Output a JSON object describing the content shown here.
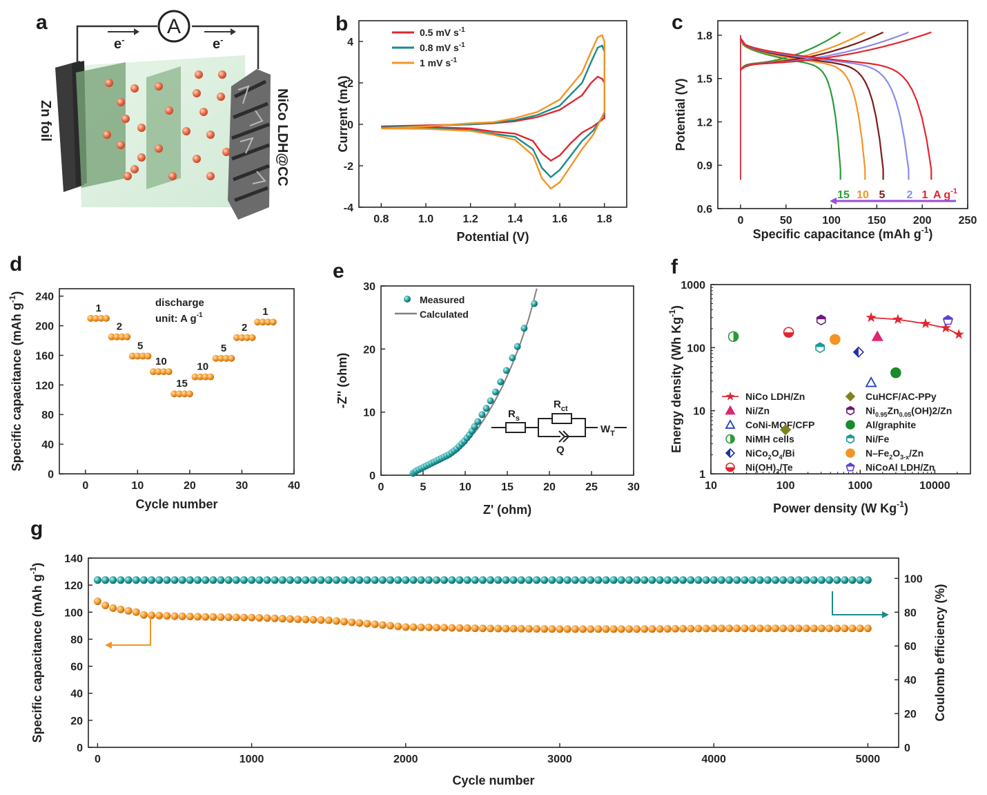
{
  "panels": {
    "a": {
      "label": "a",
      "ammeter": "A",
      "electron_left": "e",
      "electron_right": "e",
      "electron_sup": "-",
      "left_electrode": "Zn foil",
      "right_electrode": "NiCo LDH@CC"
    },
    "b": {
      "label": "b"
    },
    "c": {
      "label": "c"
    },
    "d": {
      "label": "d",
      "note_line1": "discharge",
      "note_line2": "unit: A g",
      "note_sup": "-1"
    },
    "e": {
      "label": "e",
      "circuit": {
        "rs": "R",
        "rs_sub": "s",
        "rct": "R",
        "rct_sub": "ct",
        "q": "Q",
        "wt": "W",
        "wt_sub": "T"
      }
    },
    "f": {
      "label": "f"
    },
    "g": {
      "label": "g"
    }
  },
  "chart_data": [
    {
      "id": "b",
      "type": "line",
      "xlabel": "Potential (V)",
      "ylabel": "Current (mA)",
      "xlim": [
        0.7,
        1.9
      ],
      "ylim": [
        -4,
        5
      ],
      "xticks": [
        "0.8",
        "1.0",
        "1.2",
        "1.4",
        "1.6",
        "1.8"
      ],
      "yticks": [
        "-4",
        "-2",
        "0",
        "2",
        "4"
      ],
      "series": [
        {
          "name": "0.5 mV s",
          "sup": "-1",
          "color": "#e0262e",
          "anodic_x": [
            0.8,
            1.0,
            1.2,
            1.3,
            1.4,
            1.5,
            1.6,
            1.7,
            1.74,
            1.77,
            1.79,
            1.8
          ],
          "anodic_y": [
            -0.1,
            -0.05,
            0.0,
            0.05,
            0.15,
            0.35,
            0.7,
            1.4,
            2.0,
            2.3,
            2.2,
            2.0
          ],
          "cathodic_x": [
            1.8,
            1.75,
            1.7,
            1.65,
            1.6,
            1.56,
            1.52,
            1.48,
            1.4,
            1.3,
            1.2,
            1.0,
            0.8
          ],
          "cathodic_y": [
            0.3,
            -0.1,
            -0.4,
            -0.9,
            -1.5,
            -1.75,
            -1.4,
            -0.8,
            -0.45,
            -0.35,
            -0.2,
            -0.12,
            -0.1
          ]
        },
        {
          "name": "0.8 mV s",
          "sup": "-1",
          "color": "#1a8a8a",
          "anodic_x": [
            0.8,
            1.0,
            1.2,
            1.3,
            1.4,
            1.5,
            1.6,
            1.7,
            1.74,
            1.77,
            1.79,
            1.8
          ],
          "anodic_y": [
            -0.15,
            -0.08,
            0.0,
            0.07,
            0.2,
            0.45,
            0.9,
            2.0,
            3.0,
            3.7,
            3.8,
            3.5
          ],
          "cathodic_x": [
            1.8,
            1.75,
            1.7,
            1.65,
            1.6,
            1.56,
            1.52,
            1.48,
            1.4,
            1.3,
            1.2,
            1.0,
            0.8
          ],
          "cathodic_y": [
            0.5,
            -0.3,
            -0.8,
            -1.5,
            -2.2,
            -2.55,
            -2.1,
            -1.2,
            -0.6,
            -0.45,
            -0.28,
            -0.18,
            -0.15
          ]
        },
        {
          "name": "1 mV s",
          "sup": "-1",
          "color": "#f39424",
          "anodic_x": [
            0.8,
            1.0,
            1.2,
            1.3,
            1.4,
            1.5,
            1.6,
            1.7,
            1.74,
            1.77,
            1.79,
            1.8
          ],
          "anodic_y": [
            -0.2,
            -0.1,
            0.05,
            0.1,
            0.3,
            0.6,
            1.2,
            2.5,
            3.5,
            4.2,
            4.3,
            4.0
          ],
          "cathodic_x": [
            1.8,
            1.75,
            1.7,
            1.65,
            1.6,
            1.56,
            1.52,
            1.48,
            1.4,
            1.3,
            1.2,
            1.0,
            0.8
          ],
          "cathodic_y": [
            0.6,
            -0.5,
            -1.2,
            -2.0,
            -2.8,
            -3.1,
            -2.6,
            -1.5,
            -0.75,
            -0.5,
            -0.32,
            -0.22,
            -0.2
          ]
        }
      ]
    },
    {
      "id": "c",
      "type": "line",
      "xlabel": "Specific capacitance (mAh g",
      "xlabel_sup": "-1",
      "xlabel_end": ")",
      "ylabel": "Potential (V)",
      "xlim": [
        -25,
        250
      ],
      "ylim": [
        0.6,
        1.9
      ],
      "xticks": [
        "0",
        "50",
        "100",
        "150",
        "200",
        "250"
      ],
      "yticks": [
        "0.6",
        "0.9",
        "1.2",
        "1.5",
        "1.8"
      ],
      "rate_unit": "A g",
      "rate_unit_sup": "-1",
      "series": [
        {
          "name": "15",
          "color": "#2a9a3a",
          "capacity": 110
        },
        {
          "name": "10",
          "color": "#f39424",
          "capacity": 137
        },
        {
          "name": "5",
          "color": "#7a1a1a",
          "capacity": 157
        },
        {
          "name": "2",
          "color": "#8a8af0",
          "capacity": 185
        },
        {
          "name": "1",
          "color": "#e0262e",
          "capacity": 210
        }
      ]
    },
    {
      "id": "d",
      "type": "scatter",
      "xlabel": "Cycle number",
      "ylabel": "Specific capacitance (mAh g",
      "ylabel_sup": "-1",
      "ylabel_end": ")",
      "xlim": [
        -5,
        40
      ],
      "ylim": [
        0,
        250
      ],
      "xticks": [
        "0",
        "10",
        "20",
        "30",
        "40"
      ],
      "yticks": [
        "0",
        "40",
        "80",
        "120",
        "160",
        "200",
        "240"
      ],
      "color": "#f39424",
      "steps": [
        {
          "rate": "1",
          "start": 1,
          "value": 210
        },
        {
          "rate": "2",
          "start": 5,
          "value": 185
        },
        {
          "rate": "5",
          "start": 9,
          "value": 159
        },
        {
          "rate": "10",
          "start": 13,
          "value": 138
        },
        {
          "rate": "15",
          "start": 17,
          "value": 108
        },
        {
          "rate": "10",
          "start": 21,
          "value": 131
        },
        {
          "rate": "5",
          "start": 25,
          "value": 156
        },
        {
          "rate": "2",
          "start": 29,
          "value": 184
        },
        {
          "rate": "1",
          "start": 33,
          "value": 205
        }
      ]
    },
    {
      "id": "e",
      "type": "scatter",
      "xlabel": "Z' (ohm)",
      "ylabel": "-Z'' (ohm)",
      "xlim": [
        0,
        30
      ],
      "ylim": [
        0,
        30
      ],
      "xticks": [
        "0",
        "5",
        "10",
        "15",
        "20",
        "25",
        "30"
      ],
      "yticks": [
        "0",
        "10",
        "20",
        "30"
      ],
      "legend": {
        "measured": "Measured",
        "calculated": "Calculated"
      },
      "measured_color": "#1a8a8a",
      "calculated_color": "#808080",
      "measured_x": [
        3.8,
        4.0,
        4.2,
        4.5,
        4.8,
        5.1,
        5.4,
        5.7,
        6.0,
        6.3,
        6.6,
        6.9,
        7.2,
        7.5,
        7.8,
        8.1,
        8.4,
        8.7,
        9.0,
        9.3,
        9.6,
        9.9,
        10.2,
        10.5,
        10.8,
        11.1,
        11.5,
        12.0,
        12.5,
        13.0,
        13.6,
        14.2,
        14.9,
        15.6,
        16.2,
        17.0,
        18.2
      ],
      "measured_y": [
        0.3,
        0.5,
        0.7,
        0.9,
        1.1,
        1.3,
        1.5,
        1.7,
        1.9,
        2.1,
        2.3,
        2.5,
        2.7,
        2.9,
        3.1,
        3.3,
        3.6,
        3.9,
        4.2,
        4.6,
        5.0,
        5.4,
        5.9,
        6.4,
        7.0,
        7.7,
        8.5,
        9.6,
        10.6,
        11.8,
        13.2,
        14.8,
        16.6,
        18.6,
        20.4,
        23.3,
        27.2
      ],
      "calc_x": [
        3.6,
        4.5,
        5.5,
        6.5,
        7.5,
        8.5,
        9.5,
        10.5,
        11.5,
        12.5,
        13.5,
        14.5,
        15.5,
        16.5,
        17.5,
        18.0,
        18.5
      ],
      "calc_y": [
        0.0,
        0.9,
        1.6,
        2.2,
        2.8,
        3.5,
        4.5,
        5.8,
        7.4,
        9.4,
        11.7,
        14.3,
        17.3,
        20.7,
        24.6,
        27.0,
        29.6
      ]
    },
    {
      "id": "f",
      "type": "scatter",
      "xlabel": "Power density (W Kg",
      "xlabel_sup": "-1",
      "xlabel_end": ")",
      "ylabel": "Energy density (Wh Kg",
      "ylabel_sup": "-1",
      "ylabel_end": ")",
      "xscale": "log",
      "yscale": "log",
      "xlim": [
        10,
        30000
      ],
      "ylim": [
        1,
        1000
      ],
      "xticks": [
        "10",
        "100",
        "1000",
        "10000"
      ],
      "yticks": [
        "1",
        "10",
        "100",
        "1000"
      ],
      "series": [
        {
          "name": "NiCo LDH/Zn",
          "marker": "star",
          "color": "#e0262e",
          "points": [
            [
              1400,
              300
            ],
            [
              3200,
              280
            ],
            [
              7500,
              240
            ],
            [
              14000,
              205
            ],
            [
              21000,
              162
            ]
          ]
        },
        {
          "name": "Ni/Zn",
          "marker": "triangle",
          "color": "#e0266e",
          "points": [
            [
              1700,
              150
            ]
          ]
        },
        {
          "name": "CoNi-MOF/CFP",
          "marker": "triangle-open",
          "color": "#2040c0",
          "points": [
            [
              1400,
              28
            ]
          ]
        },
        {
          "name": "NiMH cells",
          "marker": "circle-half",
          "color": "#2a9a3a",
          "points": [
            [
              20,
              150
            ]
          ]
        },
        {
          "name": "NiCo",
          "sub": "2",
          "name_mid": "O",
          "sub2": "4",
          "name_end": "/Bi",
          "marker": "diamond-half",
          "color": "#2030a0",
          "points": [
            [
              950,
              85
            ]
          ]
        },
        {
          "name": "Ni(OH)",
          "sub": "2",
          "name_end": "/Te",
          "marker": "circle-half-h",
          "color": "#e0262e",
          "points": [
            [
              110,
              175
            ]
          ]
        },
        {
          "name": "CuHCF/AC-PPy",
          "marker": "diamond",
          "color": "#808020",
          "points": [
            [
              100,
              5
            ]
          ]
        },
        {
          "name": "Ni",
          "sub": "0.95",
          "name_mid": "Zn",
          "sub2": "0.05",
          "name_end": "(OH)2/Zn",
          "marker": "hexagon-half",
          "color": "#6a1a7a",
          "points": [
            [
              300,
              275
            ]
          ]
        },
        {
          "name": "Al/graphite",
          "marker": "circle",
          "color": "#1a8a2a",
          "points": [
            [
              3000,
              40
            ]
          ]
        },
        {
          "name": "Ni/Fe",
          "marker": "hexagon-half",
          "color": "#1a9a9a",
          "points": [
            [
              290,
              100
            ]
          ]
        },
        {
          "name": "N–Fe",
          "sub": "2",
          "name_mid": "O",
          "sub2": "3-x",
          "name_end": "/Zn",
          "marker": "circle",
          "color": "#f39424",
          "points": [
            [
              460,
              135
            ]
          ]
        },
        {
          "name": "NiCoAl LDH/Zn",
          "marker": "pentagon-half",
          "color": "#6040d0",
          "points": [
            [
              15000,
              270
            ]
          ]
        }
      ]
    },
    {
      "id": "g",
      "type": "scatter",
      "xlabel": "Cycle number",
      "ylabel": "Specific capacitance (mAh g",
      "ylabel_sup": "-1",
      "ylabel_end": ")",
      "y2label": "Coulomb efficiency (%)",
      "xlim": [
        -60,
        5200
      ],
      "ylim": [
        0,
        140
      ],
      "y2lim": [
        0,
        112
      ],
      "xticks": [
        "0",
        "1000",
        "2000",
        "3000",
        "4000",
        "5000"
      ],
      "yticks": [
        "0",
        "20",
        "40",
        "60",
        "80",
        "100",
        "120",
        "140"
      ],
      "y2ticks": [
        "0",
        "20",
        "40",
        "60",
        "80",
        "100"
      ],
      "capacity_color": "#f39424",
      "efficiency_color": "#1a8a8a",
      "capacity_x": [
        0,
        50,
        100,
        150,
        200,
        250,
        300,
        400,
        500,
        700,
        1000,
        1500,
        2000,
        2500,
        3000,
        3500,
        4000,
        4500,
        5000
      ],
      "capacity_y": [
        108,
        105,
        103,
        102,
        101,
        100,
        98,
        97.5,
        97,
        96.5,
        96,
        94,
        89,
        88,
        87.5,
        87.5,
        88,
        88,
        88
      ],
      "efficiency": 99
    }
  ]
}
